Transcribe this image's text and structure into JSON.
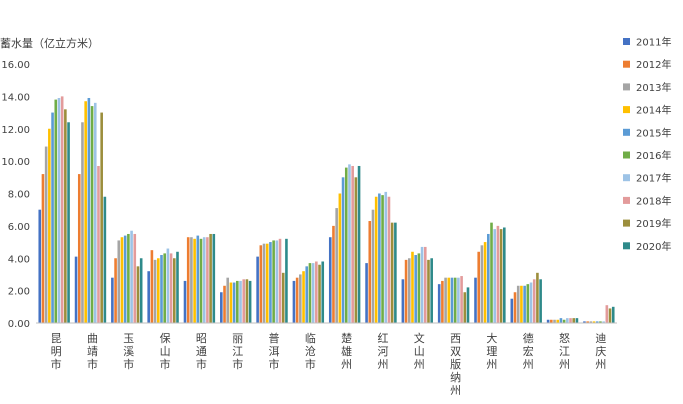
{
  "chart_data": {
    "type": "bar",
    "ylabel": "蓄水量（亿立方米）",
    "ylim": [
      0,
      16
    ],
    "yticks": [
      "0.00",
      "2.00",
      "4.00",
      "6.00",
      "8.00",
      "10.00",
      "12.00",
      "14.00",
      "16.00"
    ],
    "grid": false,
    "legend_position": "right",
    "categories": [
      "昆明市",
      "曲靖市",
      "玉溪市",
      "保山市",
      "昭通市",
      "丽江市",
      "普洱市",
      "临沧市",
      "楚雄州",
      "红河州",
      "文山州",
      "西双版纳州",
      "大理州",
      "德宏州",
      "怒江州",
      "迪庆州"
    ],
    "series": [
      {
        "name": "2011年",
        "color": "#4472C4",
        "values": [
          7.0,
          4.1,
          2.8,
          3.2,
          2.6,
          1.9,
          4.1,
          2.6,
          5.3,
          3.7,
          2.7,
          2.4,
          2.8,
          1.5,
          0.2,
          0.1
        ]
      },
      {
        "name": "2012年",
        "color": "#ED7D31",
        "values": [
          9.2,
          9.2,
          4.0,
          4.5,
          5.3,
          2.3,
          4.8,
          2.8,
          6.0,
          6.3,
          3.9,
          2.6,
          4.4,
          1.9,
          0.2,
          0.1
        ]
      },
      {
        "name": "2013年",
        "color": "#A5A5A5",
        "values": [
          10.9,
          12.4,
          5.1,
          3.9,
          5.3,
          2.8,
          4.9,
          3.0,
          7.1,
          7.0,
          4.0,
          2.8,
          4.8,
          2.3,
          0.2,
          0.1
        ]
      },
      {
        "name": "2014年",
        "color": "#FFC000",
        "values": [
          12.0,
          13.7,
          5.3,
          4.0,
          5.2,
          2.5,
          4.9,
          3.2,
          8.0,
          7.8,
          4.4,
          2.8,
          5.0,
          2.3,
          0.2,
          0.1
        ]
      },
      {
        "name": "2015年",
        "color": "#5B9BD5",
        "values": [
          13.0,
          13.9,
          5.4,
          4.2,
          5.4,
          2.5,
          5.0,
          3.5,
          9.0,
          8.0,
          4.2,
          2.8,
          5.5,
          2.3,
          0.3,
          0.1
        ]
      },
      {
        "name": "2016年",
        "color": "#70AD47",
        "values": [
          13.8,
          13.4,
          5.5,
          4.3,
          5.2,
          2.6,
          5.1,
          3.7,
          9.6,
          7.9,
          4.3,
          2.8,
          6.2,
          2.4,
          0.2,
          0.1
        ]
      },
      {
        "name": "2017年",
        "color": "#9DC3E6",
        "values": [
          13.9,
          13.6,
          5.7,
          4.6,
          5.3,
          2.6,
          5.1,
          3.7,
          9.8,
          8.1,
          4.7,
          2.8,
          5.8,
          2.5,
          0.3,
          0.1
        ]
      },
      {
        "name": "2018年",
        "color": "#E39B9B",
        "values": [
          14.0,
          9.7,
          5.5,
          4.3,
          5.3,
          2.7,
          5.2,
          3.8,
          9.7,
          7.8,
          4.7,
          2.9,
          6.0,
          2.7,
          0.3,
          1.1
        ]
      },
      {
        "name": "2019年",
        "color": "#9C8E3C",
        "values": [
          13.2,
          13.0,
          3.5,
          4.0,
          5.5,
          2.7,
          3.1,
          3.6,
          9.0,
          6.2,
          3.9,
          1.9,
          5.8,
          3.1,
          0.3,
          0.9
        ]
      },
      {
        "name": "2020年",
        "color": "#2E8A8A",
        "values": [
          12.4,
          7.8,
          4.0,
          4.4,
          5.5,
          2.6,
          5.2,
          3.8,
          9.7,
          6.2,
          4.0,
          2.2,
          5.9,
          2.7,
          0.3,
          1.0
        ]
      }
    ]
  }
}
